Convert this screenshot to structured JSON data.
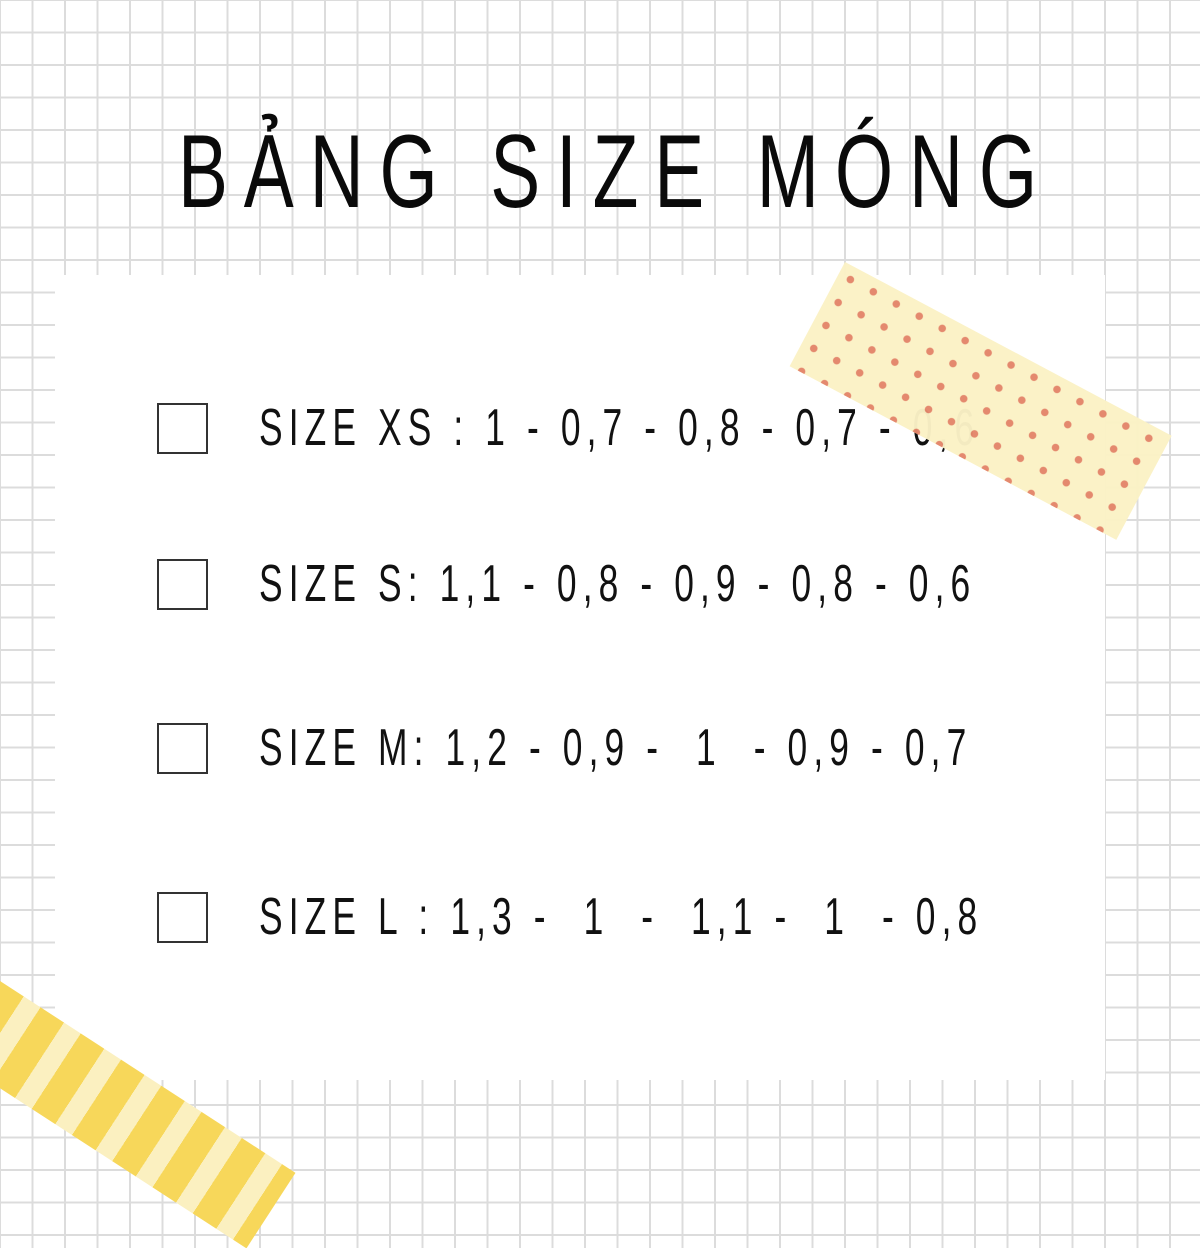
{
  "title": "BẢNG SIZE MÓNG",
  "colors": {
    "grid": "#dcdcdc",
    "tape_dots_bg": "#fbf2c6",
    "tape_dots": "#e4866a",
    "tape_stripes": "#f7d75a",
    "text": "#111111"
  },
  "sizes": [
    {
      "label": "SIZE XS : 1 - 0,7 - 0,8 - 0,7 - 0,6",
      "checked": false
    },
    {
      "label": "SIZE S: 1,1 - 0,8 - 0,9 - 0,8 - 0,6",
      "checked": false
    },
    {
      "label": "SIZE M: 1,2 - 0,9 -  1  - 0,9 - 0,7",
      "checked": false
    },
    {
      "label": "SIZE L : 1,3 -  1  -  1,1 -  1  - 0,8",
      "checked": false
    }
  ]
}
